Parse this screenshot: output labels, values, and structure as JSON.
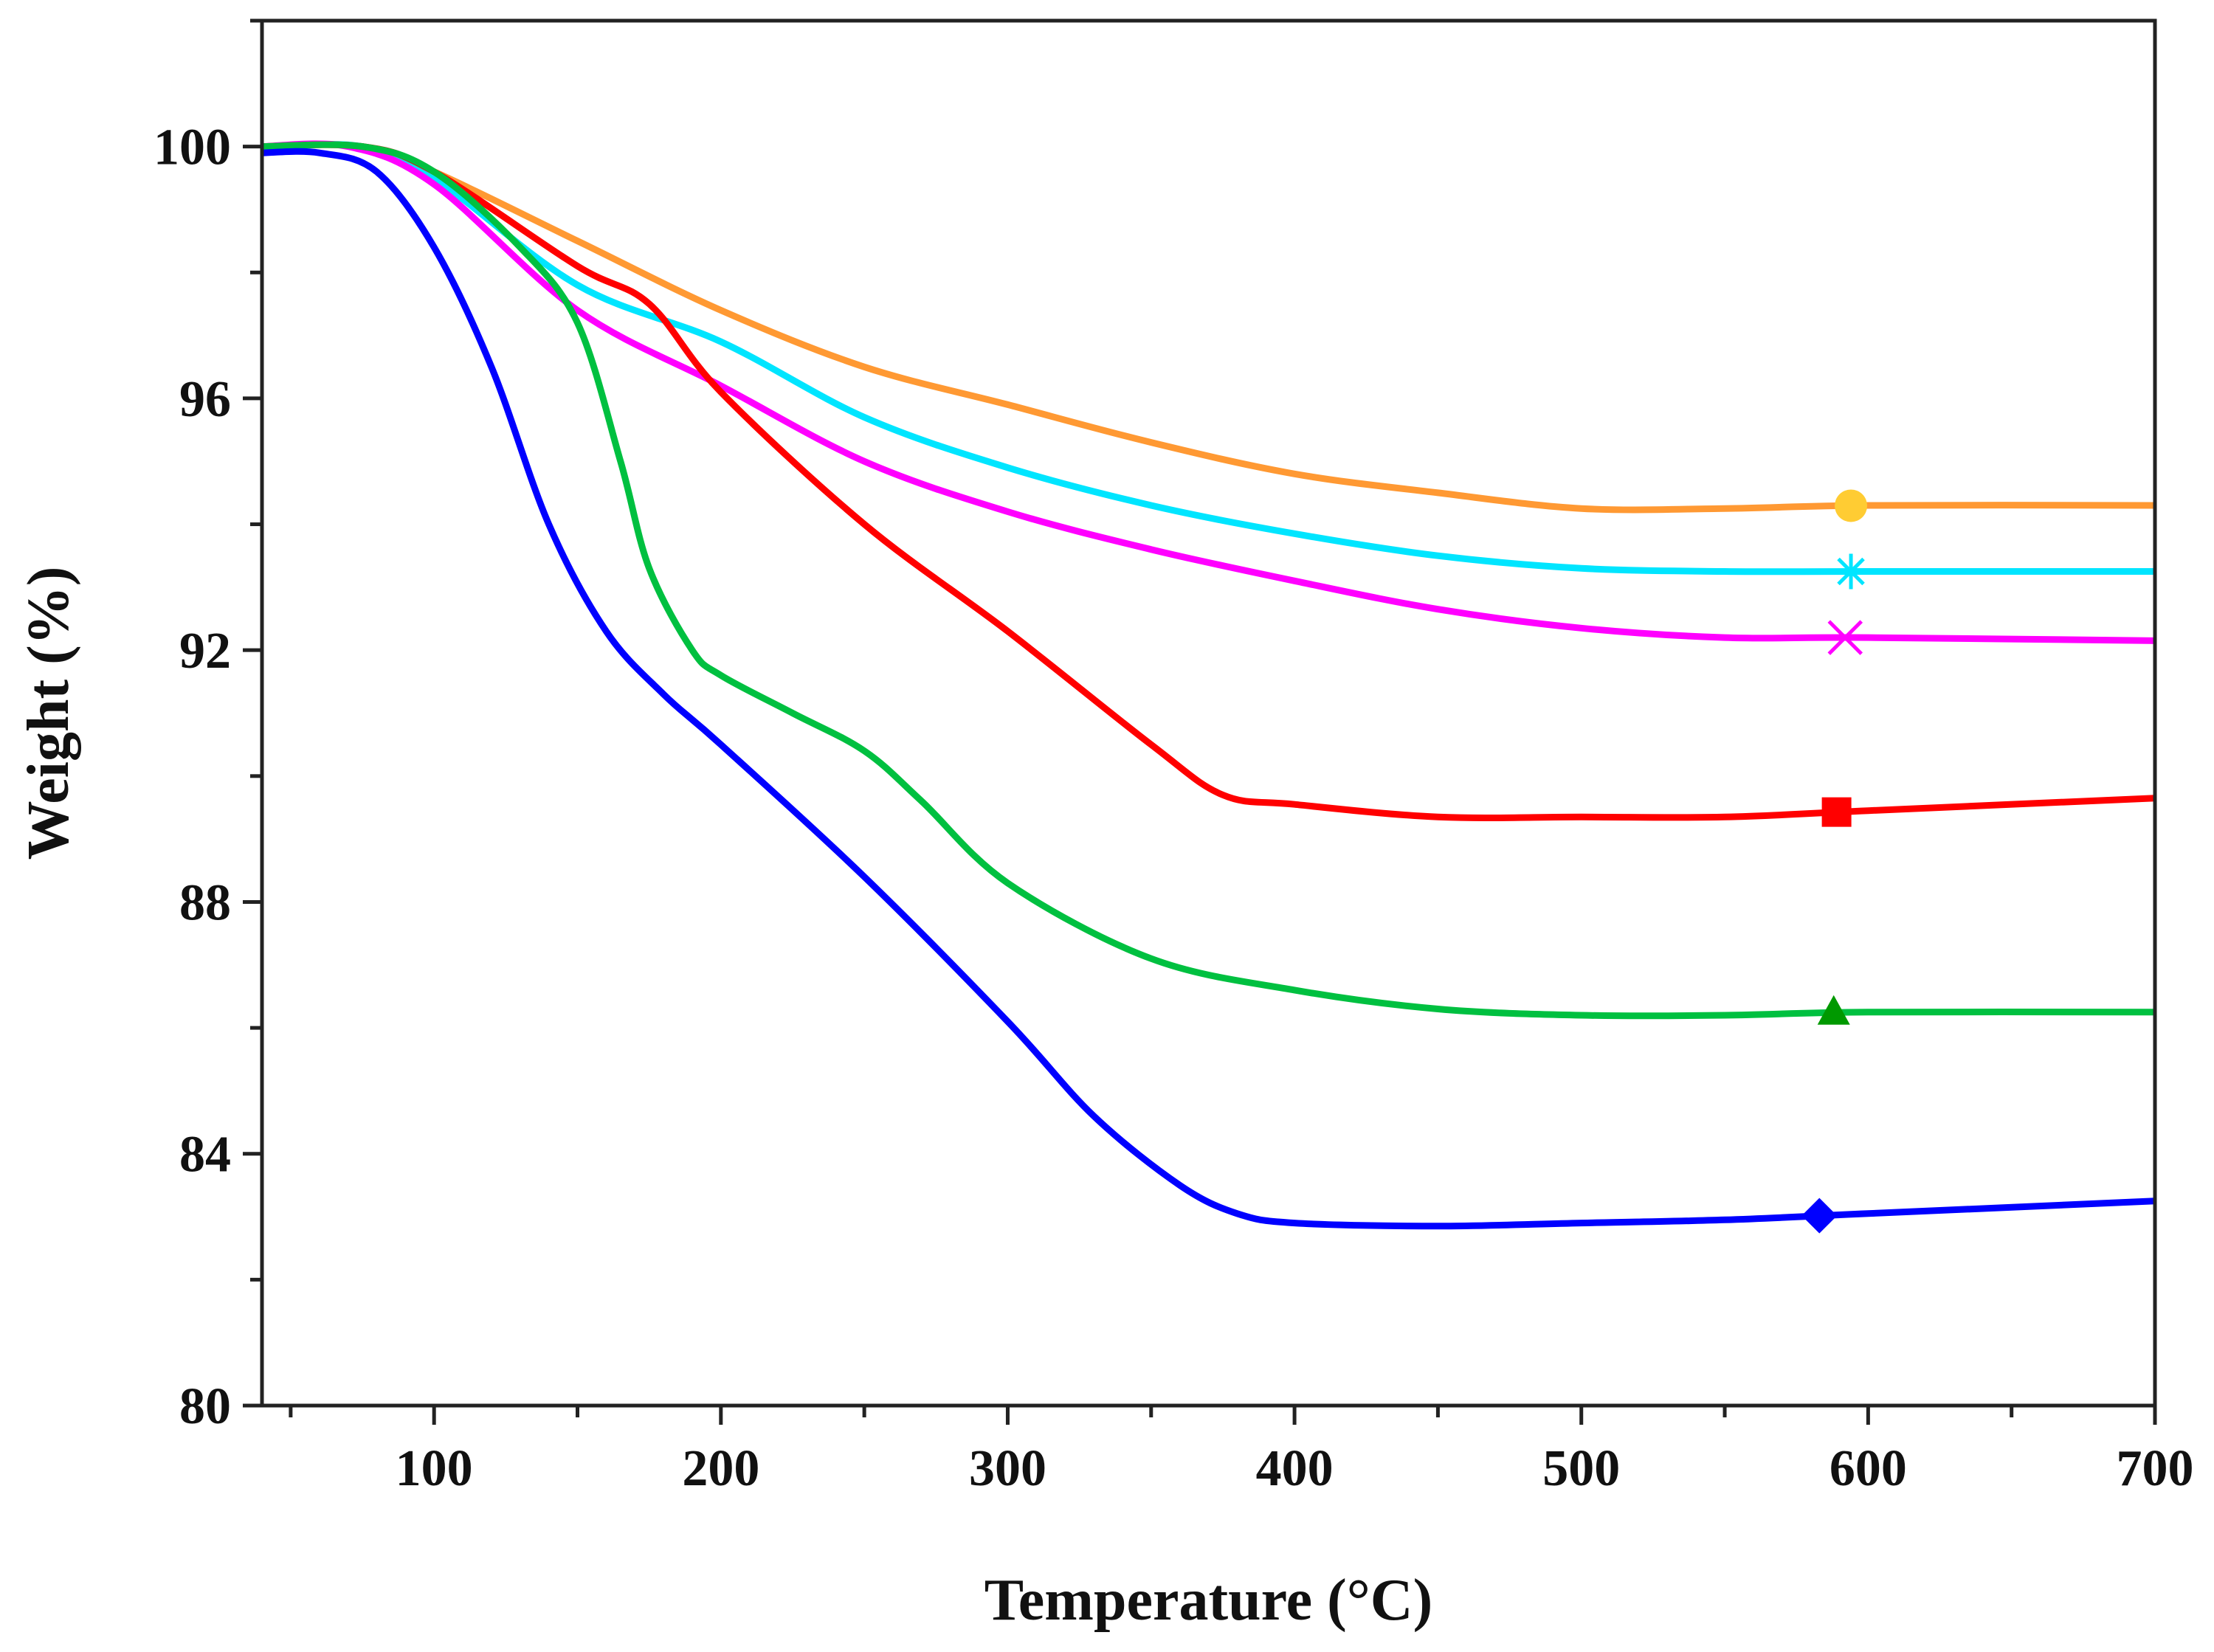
{
  "chart_data": {
    "type": "line",
    "title": "",
    "xlabel": "Temperature (°C)",
    "ylabel": "Weight (%)",
    "xlim": [
      40,
      700
    ],
    "ylim": [
      80,
      102
    ],
    "x_ticks": [
      100,
      200,
      300,
      400,
      500,
      600,
      700
    ],
    "y_ticks": [
      80,
      84,
      88,
      92,
      96,
      100
    ],
    "x_tick_labels": [
      "100",
      "200",
      "300",
      "400",
      "500",
      "600",
      "700"
    ],
    "y_tick_labels": [
      "80",
      "84",
      "88",
      "92",
      "96",
      "100"
    ],
    "grid": false,
    "legend": "none",
    "series": [
      {
        "name": "orange",
        "color": "#ff9933",
        "marker": "circle",
        "marker_color": "#ffcc33",
        "marker_x": 594,
        "points": [
          [
            40,
            100
          ],
          [
            75,
            100
          ],
          [
            100,
            99.6
          ],
          [
            150,
            98.5
          ],
          [
            200,
            97.4
          ],
          [
            250,
            96.5
          ],
          [
            300,
            95.9
          ],
          [
            350,
            95.3
          ],
          [
            400,
            94.8
          ],
          [
            450,
            94.5
          ],
          [
            500,
            94.25
          ],
          [
            550,
            94.25
          ],
          [
            600,
            94.3
          ],
          [
            700,
            94.3
          ]
        ]
      },
      {
        "name": "cyan",
        "color": "#00e5ff",
        "marker": "asterisk",
        "marker_color": "#00e5ff",
        "marker_x": 594,
        "points": [
          [
            40,
            100
          ],
          [
            75,
            100
          ],
          [
            100,
            99.5
          ],
          [
            150,
            97.8
          ],
          [
            200,
            96.9
          ],
          [
            250,
            95.7
          ],
          [
            300,
            94.9
          ],
          [
            350,
            94.3
          ],
          [
            400,
            93.85
          ],
          [
            450,
            93.5
          ],
          [
            500,
            93.3
          ],
          [
            550,
            93.25
          ],
          [
            600,
            93.25
          ],
          [
            700,
            93.25
          ]
        ]
      },
      {
        "name": "magenta",
        "color": "#ff00ff",
        "marker": "cross",
        "marker_color": "#ff00ff",
        "marker_x": 592,
        "points": [
          [
            40,
            100
          ],
          [
            70,
            100
          ],
          [
            100,
            99.4
          ],
          [
            150,
            97.4
          ],
          [
            200,
            96.2
          ],
          [
            250,
            95.0
          ],
          [
            300,
            94.2
          ],
          [
            350,
            93.6
          ],
          [
            400,
            93.1
          ],
          [
            450,
            92.65
          ],
          [
            500,
            92.35
          ],
          [
            550,
            92.2
          ],
          [
            600,
            92.2
          ],
          [
            700,
            92.15
          ]
        ]
      },
      {
        "name": "red",
        "color": "#ff0000",
        "marker": "square",
        "marker_color": "#ff0000",
        "marker_x": 589,
        "points": [
          [
            40,
            100
          ],
          [
            75,
            100
          ],
          [
            100,
            99.6
          ],
          [
            150,
            98.1
          ],
          [
            175,
            97.5
          ],
          [
            200,
            96.1
          ],
          [
            250,
            94.0
          ],
          [
            300,
            92.3
          ],
          [
            350,
            90.5
          ],
          [
            375,
            89.7
          ],
          [
            400,
            89.55
          ],
          [
            450,
            89.35
          ],
          [
            500,
            89.35
          ],
          [
            550,
            89.35
          ],
          [
            600,
            89.45
          ],
          [
            700,
            89.65
          ]
        ]
      },
      {
        "name": "green",
        "color": "#00c040",
        "marker": "triangle",
        "marker_color": "#009900",
        "marker_x": 588,
        "points": [
          [
            40,
            100
          ],
          [
            75,
            100
          ],
          [
            100,
            99.6
          ],
          [
            130,
            98.4
          ],
          [
            150,
            97.2
          ],
          [
            165,
            95.0
          ],
          [
            175,
            93.3
          ],
          [
            190,
            92.0
          ],
          [
            200,
            91.6
          ],
          [
            225,
            91.0
          ],
          [
            250,
            90.4
          ],
          [
            270,
            89.6
          ],
          [
            300,
            88.3
          ],
          [
            350,
            87.1
          ],
          [
            400,
            86.6
          ],
          [
            450,
            86.3
          ],
          [
            500,
            86.2
          ],
          [
            550,
            86.2
          ],
          [
            600,
            86.25
          ],
          [
            700,
            86.25
          ]
        ]
      },
      {
        "name": "blue",
        "color": "#0000ff",
        "marker": "diamond",
        "marker_color": "#0000ff",
        "marker_x": 583,
        "points": [
          [
            40,
            99.9
          ],
          [
            60,
            99.9
          ],
          [
            80,
            99.6
          ],
          [
            100,
            98.4
          ],
          [
            120,
            96.5
          ],
          [
            140,
            94.0
          ],
          [
            160,
            92.3
          ],
          [
            180,
            91.3
          ],
          [
            200,
            90.5
          ],
          [
            250,
            88.4
          ],
          [
            300,
            86.1
          ],
          [
            330,
            84.6
          ],
          [
            360,
            83.5
          ],
          [
            380,
            83.05
          ],
          [
            400,
            82.9
          ],
          [
            450,
            82.85
          ],
          [
            500,
            82.9
          ],
          [
            550,
            82.95
          ],
          [
            600,
            83.05
          ],
          [
            700,
            83.25
          ]
        ]
      }
    ]
  }
}
